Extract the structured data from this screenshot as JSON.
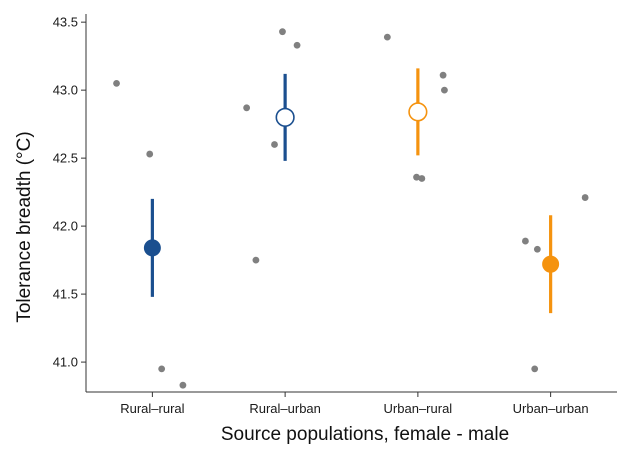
{
  "chart_data": {
    "type": "scatter",
    "title": "",
    "xlabel": "Source populations, female - male",
    "ylabel": "Tolerance breadth (°C)",
    "ylim": [
      40.78,
      43.56
    ],
    "yticks": [
      "41.0",
      "41.5",
      "42.0",
      "42.5",
      "43.0",
      "43.5"
    ],
    "grid": false,
    "legend": "none",
    "categories": [
      "Rural–rural",
      "Rural–urban",
      "Urban–rural",
      "Urban–urban"
    ],
    "colors": {
      "dark_blue": "#1b4f8f",
      "orange": "#f5930f",
      "points": "#808080",
      "axis": "#333333"
    },
    "groups": [
      {
        "category": "Rural–rural",
        "mean": 41.84,
        "ci_low": 41.48,
        "ci_high": 42.2,
        "color": "#1b4f8f",
        "marker": "filled",
        "points": [
          {
            "dx": -0.27,
            "y": 43.05
          },
          {
            "dx": -0.02,
            "y": 42.53
          },
          {
            "dx": 0.07,
            "y": 40.95
          },
          {
            "dx": 0.23,
            "y": 40.83
          }
        ]
      },
      {
        "category": "Rural–urban",
        "mean": 42.8,
        "ci_low": 42.48,
        "ci_high": 43.12,
        "color": "#1b4f8f",
        "marker": "open",
        "points": [
          {
            "dx": -0.02,
            "y": 43.43
          },
          {
            "dx": 0.09,
            "y": 43.33
          },
          {
            "dx": -0.29,
            "y": 42.87
          },
          {
            "dx": -0.08,
            "y": 42.6
          },
          {
            "dx": -0.22,
            "y": 41.75
          }
        ]
      },
      {
        "category": "Urban–rural",
        "mean": 42.84,
        "ci_low": 42.52,
        "ci_high": 43.16,
        "color": "#f5930f",
        "marker": "open",
        "points": [
          {
            "dx": -0.23,
            "y": 43.39
          },
          {
            "dx": 0.19,
            "y": 43.11
          },
          {
            "dx": 0.2,
            "y": 43.0
          },
          {
            "dx": -0.01,
            "y": 42.36
          },
          {
            "dx": 0.03,
            "y": 42.35
          }
        ]
      },
      {
        "category": "Urban–urban",
        "mean": 41.72,
        "ci_low": 41.36,
        "ci_high": 42.08,
        "color": "#f5930f",
        "marker": "filled",
        "points": [
          {
            "dx": 0.26,
            "y": 42.21
          },
          {
            "dx": -0.19,
            "y": 41.89
          },
          {
            "dx": -0.1,
            "y": 41.83
          },
          {
            "dx": -0.12,
            "y": 40.95
          }
        ]
      }
    ]
  }
}
